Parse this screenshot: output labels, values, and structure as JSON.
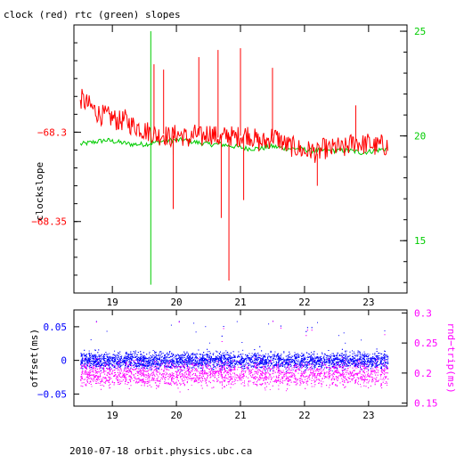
{
  "title": "clock (red) rtc (green) slopes",
  "footer": "2010-07-18 orbit.physics.ubc.ca",
  "colors": {
    "axis": "#000000",
    "clock": "#ff0000",
    "rtc": "#00cc00",
    "offset": "#0000ff",
    "rtrip": "#ff00ff"
  },
  "chart_data": [
    {
      "type": "line",
      "xlim": [
        18.4,
        23.6
      ],
      "ylabel": "clockslope",
      "ylim": [
        -68.39,
        -68.24
      ],
      "y2lim": [
        12.5,
        25.3
      ],
      "xticks": [
        19,
        20,
        21,
        22,
        23
      ],
      "yticks": [
        -68.3,
        -68.35
      ],
      "ytick_labels": [
        "−68.3",
        "−68.35"
      ],
      "y2ticks": [
        15,
        20,
        25
      ],
      "series": [
        {
          "axis": "left",
          "color": "#ff0000",
          "points": [
            [
              18.5,
              -68.281
            ],
            [
              18.6,
              -68.284
            ],
            [
              18.7,
              -68.287
            ],
            [
              18.8,
              -68.29
            ],
            [
              18.9,
              -68.291
            ],
            [
              19.0,
              -68.292
            ],
            [
              19.1,
              -68.294
            ],
            [
              19.2,
              -68.293
            ],
            [
              19.3,
              -68.296
            ],
            [
              19.4,
              -68.297
            ],
            [
              19.5,
              -68.299
            ],
            [
              19.6,
              -68.3
            ],
            [
              19.7,
              -68.302
            ],
            [
              19.8,
              -68.301
            ],
            [
              19.9,
              -68.303
            ],
            [
              20.0,
              -68.301
            ],
            [
              20.1,
              -68.302
            ],
            [
              20.2,
              -68.304
            ],
            [
              20.3,
              -68.301
            ],
            [
              20.4,
              -68.303
            ],
            [
              20.5,
              -68.3
            ],
            [
              20.6,
              -68.302
            ],
            [
              20.7,
              -68.304
            ],
            [
              20.8,
              -68.301
            ],
            [
              20.9,
              -68.303
            ],
            [
              21.0,
              -68.302
            ],
            [
              21.1,
              -68.301
            ],
            [
              21.2,
              -68.303
            ],
            [
              21.3,
              -68.306
            ],
            [
              21.4,
              -68.305
            ],
            [
              21.5,
              -68.302
            ],
            [
              21.6,
              -68.304
            ],
            [
              21.7,
              -68.307
            ],
            [
              21.8,
              -68.308
            ],
            [
              21.9,
              -68.309
            ],
            [
              22.0,
              -68.311
            ],
            [
              22.1,
              -68.31
            ],
            [
              22.2,
              -68.312
            ],
            [
              22.3,
              -68.309
            ],
            [
              22.4,
              -68.31
            ],
            [
              22.5,
              -68.308
            ],
            [
              22.6,
              -68.31
            ],
            [
              22.7,
              -68.307
            ],
            [
              22.8,
              -68.305
            ],
            [
              22.9,
              -68.307
            ],
            [
              23.0,
              -68.306
            ],
            [
              23.1,
              -68.308
            ],
            [
              23.2,
              -68.307
            ],
            [
              23.3,
              -68.308
            ]
          ],
          "spikes": [
            [
              19.65,
              -68.262
            ],
            [
              19.8,
              -68.265
            ],
            [
              19.95,
              -68.343
            ],
            [
              20.35,
              -68.258
            ],
            [
              20.65,
              -68.254
            ],
            [
              20.7,
              -68.348
            ],
            [
              20.82,
              -68.383
            ],
            [
              21.0,
              -68.253
            ],
            [
              21.05,
              -68.338
            ],
            [
              21.5,
              -68.264
            ],
            [
              22.2,
              -68.33
            ],
            [
              22.8,
              -68.285
            ]
          ]
        },
        {
          "axis": "right",
          "color": "#00cc00",
          "points": [
            [
              18.5,
              19.6
            ],
            [
              18.7,
              19.7
            ],
            [
              18.9,
              19.8
            ],
            [
              19.1,
              19.7
            ],
            [
              19.3,
              19.6
            ],
            [
              19.5,
              19.6
            ],
            [
              19.7,
              19.7
            ],
            [
              19.9,
              19.8
            ],
            [
              20.1,
              19.8
            ],
            [
              20.3,
              19.7
            ],
            [
              20.5,
              19.6
            ],
            [
              20.7,
              19.6
            ],
            [
              20.9,
              19.5
            ],
            [
              21.1,
              19.4
            ],
            [
              21.3,
              19.4
            ],
            [
              21.5,
              19.5
            ],
            [
              21.7,
              19.4
            ],
            [
              21.9,
              19.4
            ],
            [
              22.1,
              19.3
            ],
            [
              22.3,
              19.3
            ],
            [
              22.5,
              19.3
            ],
            [
              22.7,
              19.3
            ],
            [
              22.9,
              19.2
            ],
            [
              23.1,
              19.3
            ],
            [
              23.3,
              19.4
            ]
          ],
          "spikes": [
            [
              19.6,
              25.0
            ],
            [
              19.6,
              12.9
            ],
            [
              19.95,
              19.1
            ]
          ]
        }
      ]
    },
    {
      "type": "scatter",
      "xlim": [
        18.4,
        23.6
      ],
      "ylabel": "offset(ms)",
      "y2label": "rnd−trip(ms)",
      "ylim": [
        -0.068,
        0.075
      ],
      "y2lim": [
        0.145,
        0.305
      ],
      "xticks": [
        19,
        20,
        21,
        22,
        23
      ],
      "yticks": [
        0.05,
        0,
        -0.05
      ],
      "ytick_labels": [
        "0.05",
        "0",
        "−0.05"
      ],
      "y2ticks": [
        0.15,
        0.2,
        0.25,
        0.3
      ],
      "y2tick_labels": [
        "0.15",
        "0.2",
        "0.25",
        "0.3"
      ],
      "series": [
        {
          "axis": "left",
          "color": "#0000ff",
          "x_range": [
            18.5,
            23.3
          ],
          "center": 0.0,
          "spread": 0.012
        },
        {
          "axis": "right",
          "color": "#ff00ff",
          "x_range": [
            18.5,
            23.3
          ],
          "center": 0.198,
          "spread": 0.02
        }
      ]
    }
  ]
}
